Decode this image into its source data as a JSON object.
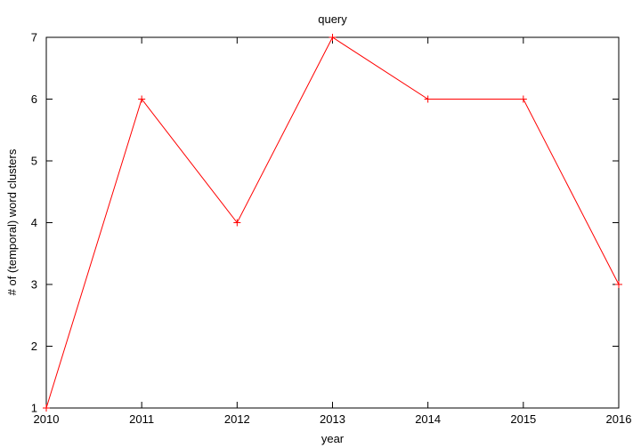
{
  "chart_data": {
    "type": "line",
    "title": "query",
    "xlabel": "year",
    "ylabel": "# of (temporal) word clusters",
    "x": [
      "2010",
      "2011",
      "2012",
      "2013",
      "2014",
      "2015",
      "2016"
    ],
    "series": [
      {
        "values": [
          1,
          6,
          4,
          7,
          6,
          6,
          3
        ],
        "color": "#ff0000",
        "marker": "plus"
      }
    ],
    "xlim": [
      2010,
      2016
    ],
    "ylim": [
      1,
      7
    ],
    "yticks": [
      "1",
      "2",
      "3",
      "4",
      "5",
      "6",
      "7"
    ],
    "grid": false,
    "axis_color": "#000000"
  }
}
